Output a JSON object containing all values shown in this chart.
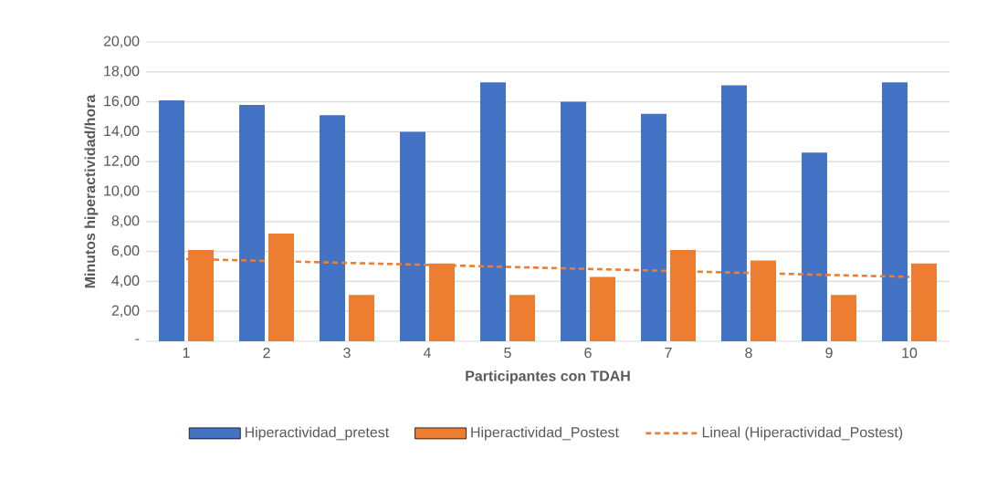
{
  "chart_data": {
    "type": "bar",
    "xlabel": "Participantes con TDAH",
    "ylabel": "Minutos hiperactividad/hora",
    "categories": [
      "1",
      "2",
      "3",
      "4",
      "5",
      "6",
      "7",
      "8",
      "9",
      "10"
    ],
    "series": [
      {
        "name": "Hiperactividad_pretest",
        "color": "#4472c4",
        "values": [
          16.1,
          15.8,
          15.1,
          14.0,
          17.3,
          16.0,
          15.2,
          17.1,
          12.6,
          17.3
        ]
      },
      {
        "name": "Hiperactividad_Postest",
        "color": "#ed7d31",
        "values": [
          6.1,
          7.2,
          3.1,
          5.2,
          3.1,
          4.3,
          6.1,
          5.4,
          3.1,
          5.2
        ]
      },
      {
        "name": "Lineal (Hiperactividad_Postest)",
        "type": "line",
        "line_style": "dashed",
        "color": "#ed7d31",
        "x": [
          "1",
          "10"
        ],
        "values": [
          5.5,
          4.3
        ]
      }
    ],
    "ylim": [
      0,
      20
    ],
    "yticks": [
      {
        "value": 0,
        "label": "-"
      },
      {
        "value": 2,
        "label": "2,00"
      },
      {
        "value": 4,
        "label": "4,00"
      },
      {
        "value": 6,
        "label": "6,00"
      },
      {
        "value": 8,
        "label": "8,00"
      },
      {
        "value": 10,
        "label": "10,00"
      },
      {
        "value": 12,
        "label": "12,00"
      },
      {
        "value": 14,
        "label": "14,00"
      },
      {
        "value": 16,
        "label": "16,00"
      },
      {
        "value": 18,
        "label": "18,00"
      },
      {
        "value": 20,
        "label": "20,00"
      }
    ],
    "grid": "y",
    "legend": "bottom"
  }
}
